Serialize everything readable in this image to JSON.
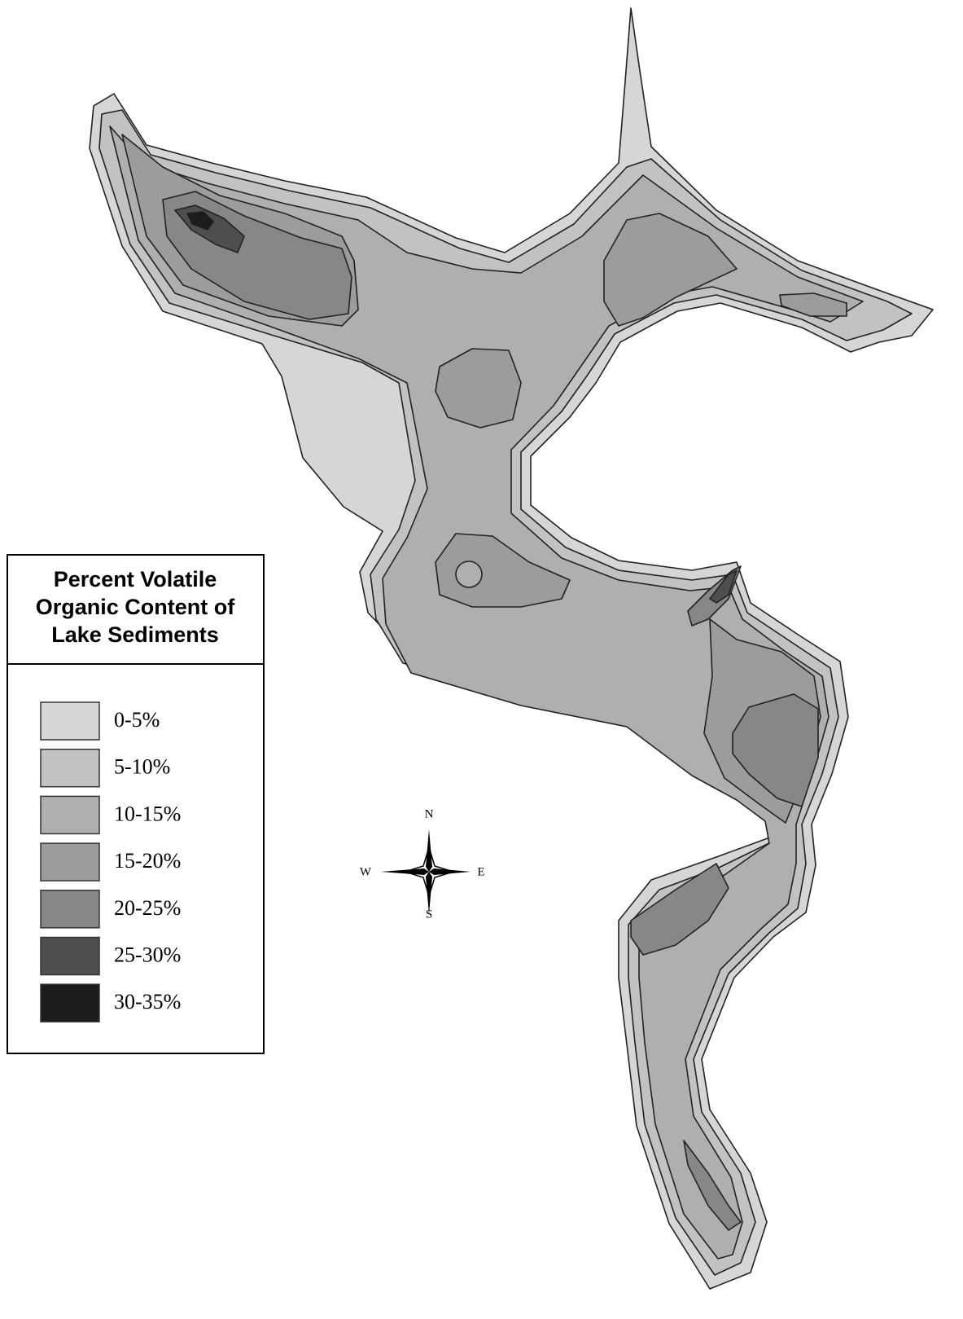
{
  "legend": {
    "title_lines": [
      "Percent Volatile",
      "Organic Content of",
      "Lake Sediments"
    ],
    "items": [
      {
        "label": "0-5%",
        "color": "#d6d6d6"
      },
      {
        "label": "5-10%",
        "color": "#c2c2c2"
      },
      {
        "label": "10-15%",
        "color": "#afafaf"
      },
      {
        "label": "15-20%",
        "color": "#9c9c9c"
      },
      {
        "label": "20-25%",
        "color": "#878787"
      },
      {
        "label": "25-30%",
        "color": "#4e4e4e"
      },
      {
        "label": "30-35%",
        "color": "#1c1c1c"
      }
    ]
  },
  "compass": {
    "north": "N",
    "south": "S",
    "east": "E",
    "west": "W"
  }
}
